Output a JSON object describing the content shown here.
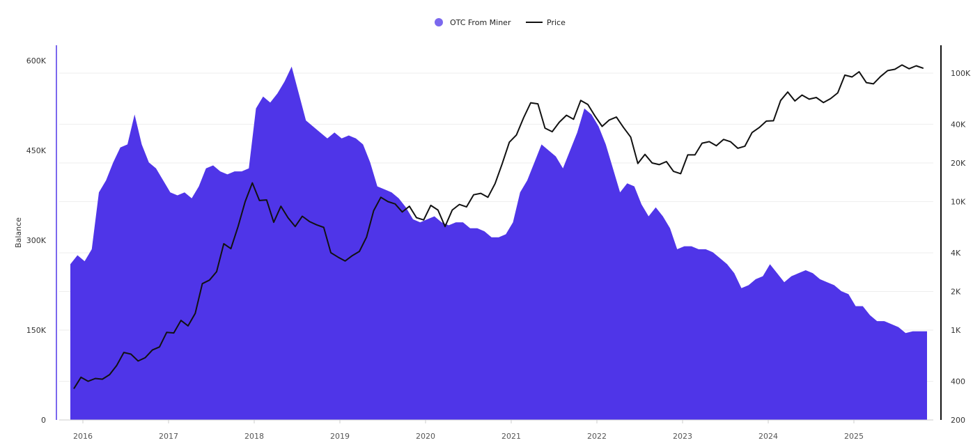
{
  "chart_data": {
    "type": "area",
    "legend": {
      "position": "top",
      "items": [
        {
          "label": "OTC From Miner",
          "color": "#7b68ee",
          "marker": "circle"
        },
        {
          "label": "Price",
          "color": "#111111",
          "marker": "line"
        }
      ]
    },
    "ylabel_left": "Balance",
    "left_axis": {
      "ticks": [
        "0",
        "150K",
        "300K",
        "450K",
        "600K"
      ],
      "tick_values": [
        0,
        150000,
        300000,
        450000,
        600000
      ],
      "range": [
        0,
        600000
      ],
      "color": "#7b68ee"
    },
    "right_axis": {
      "scale": "log",
      "ticks": [
        "200",
        "400",
        "1K",
        "2K",
        "4K",
        "10K",
        "20K",
        "40K",
        "100K"
      ],
      "tick_values": [
        200,
        400,
        1000,
        2000,
        4000,
        10000,
        20000,
        40000,
        100000
      ],
      "range": [
        200,
        100000
      ],
      "color": "#111111"
    },
    "x_ticks": [
      "2016",
      "2017",
      "2018",
      "2019",
      "2020",
      "2021",
      "2022",
      "2023",
      "2024",
      "2025"
    ],
    "x_start": "2015-11",
    "series": [
      {
        "name": "OTC From Miner",
        "type": "area",
        "color": "#4f35e8",
        "axis": "left",
        "monthly_values": [
          260000,
          275000,
          265000,
          285000,
          380000,
          400000,
          430000,
          455000,
          460000,
          510000,
          460000,
          430000,
          420000,
          400000,
          380000,
          375000,
          380000,
          370000,
          390000,
          420000,
          425000,
          415000,
          410000,
          415000,
          415000,
          420000,
          520000,
          540000,
          530000,
          545000,
          565000,
          590000,
          545000,
          500000,
          490000,
          480000,
          470000,
          480000,
          470000,
          475000,
          470000,
          460000,
          430000,
          390000,
          385000,
          380000,
          370000,
          355000,
          335000,
          330000,
          335000,
          340000,
          330000,
          325000,
          330000,
          330000,
          320000,
          320000,
          315000,
          305000,
          305000,
          310000,
          330000,
          380000,
          400000,
          430000,
          460000,
          450000,
          440000,
          420000,
          450000,
          480000,
          520000,
          510000,
          490000,
          460000,
          420000,
          380000,
          395000,
          390000,
          360000,
          340000,
          355000,
          340000,
          320000,
          285000,
          290000,
          290000,
          285000,
          285000,
          280000,
          270000,
          260000,
          245000,
          220000,
          225000,
          235000,
          240000,
          260000,
          245000,
          230000,
          240000,
          245000,
          250000,
          245000,
          235000,
          230000,
          225000,
          215000,
          210000,
          190000,
          190000,
          175000,
          165000,
          165000,
          160000,
          155000,
          145000,
          148000,
          148000
        ]
      },
      {
        "name": "Price",
        "type": "line",
        "color": "#111111",
        "axis": "right",
        "monthly_values": [
          350,
          430,
          400,
          420,
          415,
          450,
          530,
          670,
          650,
          575,
          610,
          700,
          740,
          960,
          950,
          1190,
          1080,
          1350,
          2300,
          2450,
          2850,
          4700,
          4300,
          6400,
          10000,
          14000,
          10200,
          10300,
          6900,
          9200,
          7500,
          6400,
          7700,
          7000,
          6600,
          6300,
          4000,
          3700,
          3450,
          3800,
          4100,
          5300,
          8500,
          10800,
          10000,
          9600,
          8300,
          9200,
          7500,
          7200,
          9350,
          8600,
          6400,
          8600,
          9500,
          9100,
          11300,
          11600,
          10800,
          13800,
          19700,
          29000,
          33000,
          45000,
          58800,
          57700,
          37300,
          35000,
          41500,
          47000,
          43800,
          61300,
          57000,
          46300,
          38500,
          43200,
          45500,
          37700,
          31800,
          19800,
          23300,
          20000,
          19400,
          20500,
          17200,
          16500,
          23100,
          23100,
          28500,
          29300,
          27200,
          30500,
          29200,
          26000,
          27000,
          34500,
          37700,
          42300,
          42600,
          61200,
          71300,
          60700,
          67500,
          62700,
          64600,
          59000,
          63300,
          70200,
          96400,
          93400,
          102400,
          84400,
          82500,
          94200,
          104600,
          107100,
          115700,
          108200,
          114000,
          109000
        ]
      }
    ]
  }
}
